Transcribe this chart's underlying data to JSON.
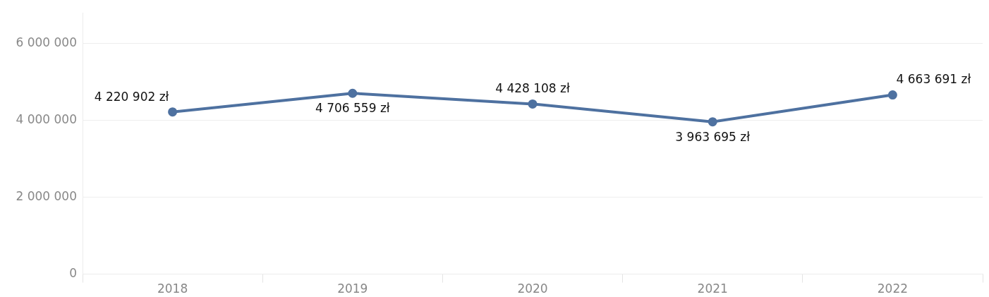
{
  "chart_data": {
    "type": "line",
    "categories": [
      "2018",
      "2019",
      "2020",
      "2021",
      "2022"
    ],
    "series": [
      {
        "color": "#4e71a0",
        "values": [
          4220902,
          4706559,
          4428108,
          3963695,
          4663691
        ],
        "value_labels": [
          "4 220 902 zł",
          "4 706 559 zł",
          "4 428 108 zł",
          "3 963 695 zł",
          "4 663 691 zł"
        ]
      }
    ],
    "ylim": [
      0,
      6800000
    ],
    "yticks": [
      0,
      {
        "value": 2000000,
        "label": "2 000 000"
      },
      {
        "value": 4000000,
        "label": "4 000 000"
      },
      {
        "value": 6000000,
        "label": "6 000 000"
      }
    ],
    "grid": "y",
    "legend": false,
    "marker": "circle",
    "line_style": "solid"
  }
}
